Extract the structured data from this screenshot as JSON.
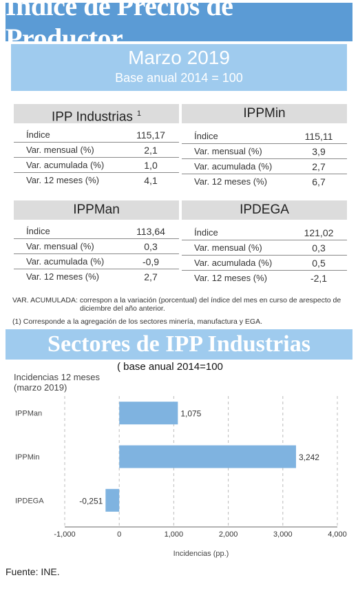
{
  "header": {
    "title": "Índice de Precios de Productor",
    "month": "Marzo 2019",
    "base": "Base anual 2014 = 100"
  },
  "panels": [
    {
      "title": "IPP Industrias",
      "footnote": "1",
      "rows": [
        {
          "label": "Índice",
          "value": "115,17"
        },
        {
          "label": "Var. mensual (%)",
          "value": "2,1"
        },
        {
          "label": "Var. acumulada (%)",
          "value": "1,0"
        },
        {
          "label": "Var. 12 meses (%)",
          "value": "4,1"
        }
      ]
    },
    {
      "title": "IPPMin",
      "footnote": "",
      "rows": [
        {
          "label": "Índice",
          "value": "115,11"
        },
        {
          "label": "Var. mensual (%)",
          "value": "3,9"
        },
        {
          "label": "Var. acumulada (%)",
          "value": "2,7"
        },
        {
          "label": "Var. 12 meses (%)",
          "value": "6,7"
        }
      ]
    },
    {
      "title": "IPPMan",
      "footnote": "",
      "rows": [
        {
          "label": "Índice",
          "value": "113,64"
        },
        {
          "label": "Var. mensual (%)",
          "value": "0,3"
        },
        {
          "label": "Var. acumulada (%)",
          "value": "-0,9"
        },
        {
          "label": "Var. 12 meses (%)",
          "value": "2,7"
        }
      ]
    },
    {
      "title": "IPDEGA",
      "footnote": "",
      "rows": [
        {
          "label": "Índice",
          "value": "121,02"
        },
        {
          "label": "Var. mensual (%)",
          "value": "0,3"
        },
        {
          "label": "Var. acumulada (%)",
          "value": "0,5"
        },
        {
          "label": "Var. 12 meses (%)",
          "value": "-2,1"
        }
      ]
    }
  ],
  "notes": {
    "acumulada_line1": "VAR. ACUMULADA:   correspon a la variación (porcentual) del índice del mes en curso de arespecto de",
    "acumulada_line2": "diciembre del año anterior.",
    "footnote1": "(1) Corresponde a la agregación de los sectores minería, manufactura y EGA."
  },
  "section2": {
    "title": "Sectores de IPP Industrias",
    "base": "( base anual 2014=100",
    "incidencias_line1": "Incidencias 12 meses",
    "incidencias_line2": "(marzo 2019)"
  },
  "chart_data": {
    "type": "bar",
    "orientation": "horizontal",
    "categories": [
      "IPPMan",
      "IPPMin",
      "IPDEGA"
    ],
    "values": [
      1.075,
      3.242,
      -0.251
    ],
    "value_labels": [
      "1,075",
      "3,242",
      "-0,251"
    ],
    "xlim": [
      -1,
      4
    ],
    "xticks": [
      -1,
      0,
      1,
      2,
      3,
      4
    ],
    "xtick_labels": [
      "-1,000",
      "0",
      "1,000",
      "2,000",
      "3,000",
      "4,000"
    ],
    "xlabel": "Incidencias (pp.)",
    "bar_color": "#7fb3e0",
    "grid": "vertical dashed"
  },
  "footer": {
    "source": "Fuente: INE."
  },
  "colors": {
    "title_bg": "#5b9bd5",
    "subtitle_bg": "#9fcbee",
    "panel_head_bg": "#dcdcdc"
  }
}
